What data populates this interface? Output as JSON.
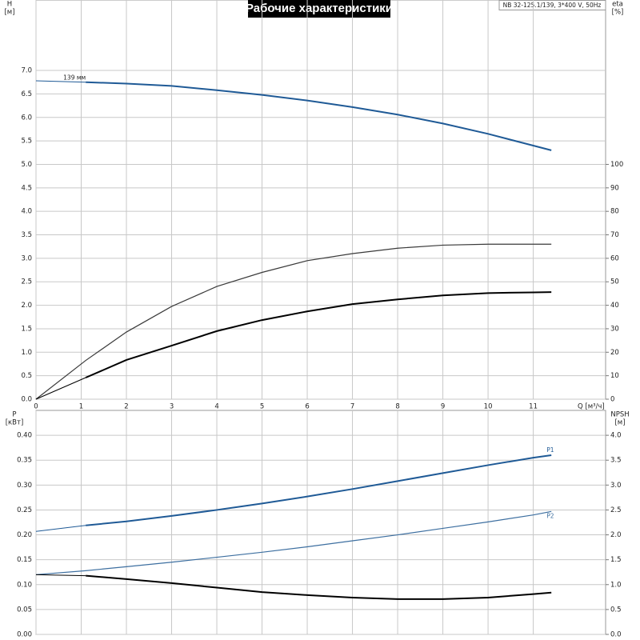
{
  "header": {
    "title": "Рабочие характеристики",
    "model": "NB 32-125.1/139, 3*400 V, 50Hz"
  },
  "chart_data": [
    {
      "type": "line",
      "ylabel": "H",
      "yunit": "[м]",
      "y2label": "eta",
      "y2unit": "[%]",
      "xlabel": "Q [м³/ч]",
      "x": [
        0,
        1.1,
        2,
        3,
        4,
        5,
        6,
        7,
        8,
        9,
        10,
        11,
        11.4
      ],
      "xlim": [
        0,
        12.6
      ],
      "xticks": [
        0,
        1,
        2,
        3,
        4,
        5,
        6,
        7,
        8,
        9,
        10,
        11
      ],
      "xticklabels": true,
      "ylim": [
        0,
        8.5
      ],
      "yticks": [
        {
          "value": 0,
          "label": "0.0"
        },
        0.5,
        {
          "value": 1,
          "label": "1.0"
        },
        1.5,
        {
          "value": 2,
          "label": "2.0"
        },
        2.5,
        {
          "value": 3,
          "label": "3.0"
        },
        3.5,
        {
          "value": 4,
          "label": "4.0"
        },
        4.5,
        {
          "value": 5,
          "label": "5.0"
        },
        5.5,
        {
          "value": 6,
          "label": "6.0"
        },
        6.5,
        {
          "value": 7,
          "label": "7.0"
        }
      ],
      "y2lim": [
        0,
        170
      ],
      "y2ticks": [
        0,
        10,
        20,
        30,
        40,
        50,
        60,
        70,
        80,
        90,
        100
      ],
      "grid": true,
      "series": [
        {
          "name": "139 мм",
          "color": "#1f5a96",
          "lw": 2,
          "values": [
            6.78,
            6.75,
            6.72,
            6.67,
            6.58,
            6.48,
            6.36,
            6.22,
            6.06,
            5.87,
            5.65,
            5.4,
            5.3
          ]
        },
        {
          "color": "#3a3a3a",
          "lw": 1.2,
          "axis": "y2",
          "values": [
            0,
            16.5,
            28.6,
            39.5,
            48,
            54,
            59,
            62,
            64.3,
            65.6,
            66,
            66,
            66
          ]
        },
        {
          "color": "#000000",
          "lw": 2,
          "axis": "y2",
          "values": [
            0,
            9.2,
            16.7,
            22.8,
            29,
            33.7,
            37.4,
            40.5,
            42.5,
            44.2,
            45.2,
            45.5,
            45.6
          ]
        }
      ]
    },
    {
      "type": "line",
      "ylabel": "P",
      "yunit": "[кВт]",
      "y2label": "NPSH",
      "y2unit": "[м]",
      "x": [
        0,
        1.1,
        2,
        3,
        4,
        5,
        6,
        7,
        8,
        9,
        10,
        11,
        11.4
      ],
      "xlim": [
        0,
        12.6
      ],
      "xticks": [
        0,
        1,
        2,
        3,
        4,
        5,
        6,
        7,
        8,
        9,
        10,
        11
      ],
      "xticklabels": false,
      "ylim": [
        0,
        0.45
      ],
      "yticks": [
        {
          "value": 0,
          "label": "0.00"
        },
        0.05,
        {
          "value": 0.1,
          "label": "0.10"
        },
        0.15,
        {
          "value": 0.2,
          "label": "0.20"
        },
        0.25,
        {
          "value": 0.3,
          "label": "0.30"
        },
        0.35,
        {
          "value": 0.4,
          "label": "0.40"
        }
      ],
      "y2lim": [
        0,
        4.5
      ],
      "y2ticks": [
        {
          "value": 0,
          "label": "0.0"
        },
        0.5,
        {
          "value": 1,
          "label": "1.0"
        },
        1.5,
        {
          "value": 2,
          "label": "2.0"
        },
        2.5,
        {
          "value": 3,
          "label": "3.0"
        },
        3.5,
        {
          "value": 4,
          "label": "4.0"
        }
      ],
      "grid": true,
      "series": [
        {
          "name": "P1",
          "color": "#1f5a96",
          "lw": 2,
          "values": [
            0.207,
            0.219,
            0.227,
            0.238,
            0.25,
            0.263,
            0.277,
            0.292,
            0.308,
            0.324,
            0.34,
            0.355,
            0.36
          ]
        },
        {
          "name": "P2",
          "color": "#3d6fa0",
          "lw": 1.2,
          "values": [
            0.12,
            0.128,
            0.136,
            0.145,
            0.155,
            0.165,
            0.176,
            0.188,
            0.2,
            0.213,
            0.226,
            0.24,
            0.247
          ]
        },
        {
          "color": "#000000",
          "lw": 2,
          "axis": "y2",
          "values": [
            1.2,
            1.18,
            1.11,
            1.03,
            0.94,
            0.85,
            0.79,
            0.74,
            0.71,
            0.71,
            0.74,
            0.81,
            0.84
          ]
        }
      ]
    }
  ]
}
